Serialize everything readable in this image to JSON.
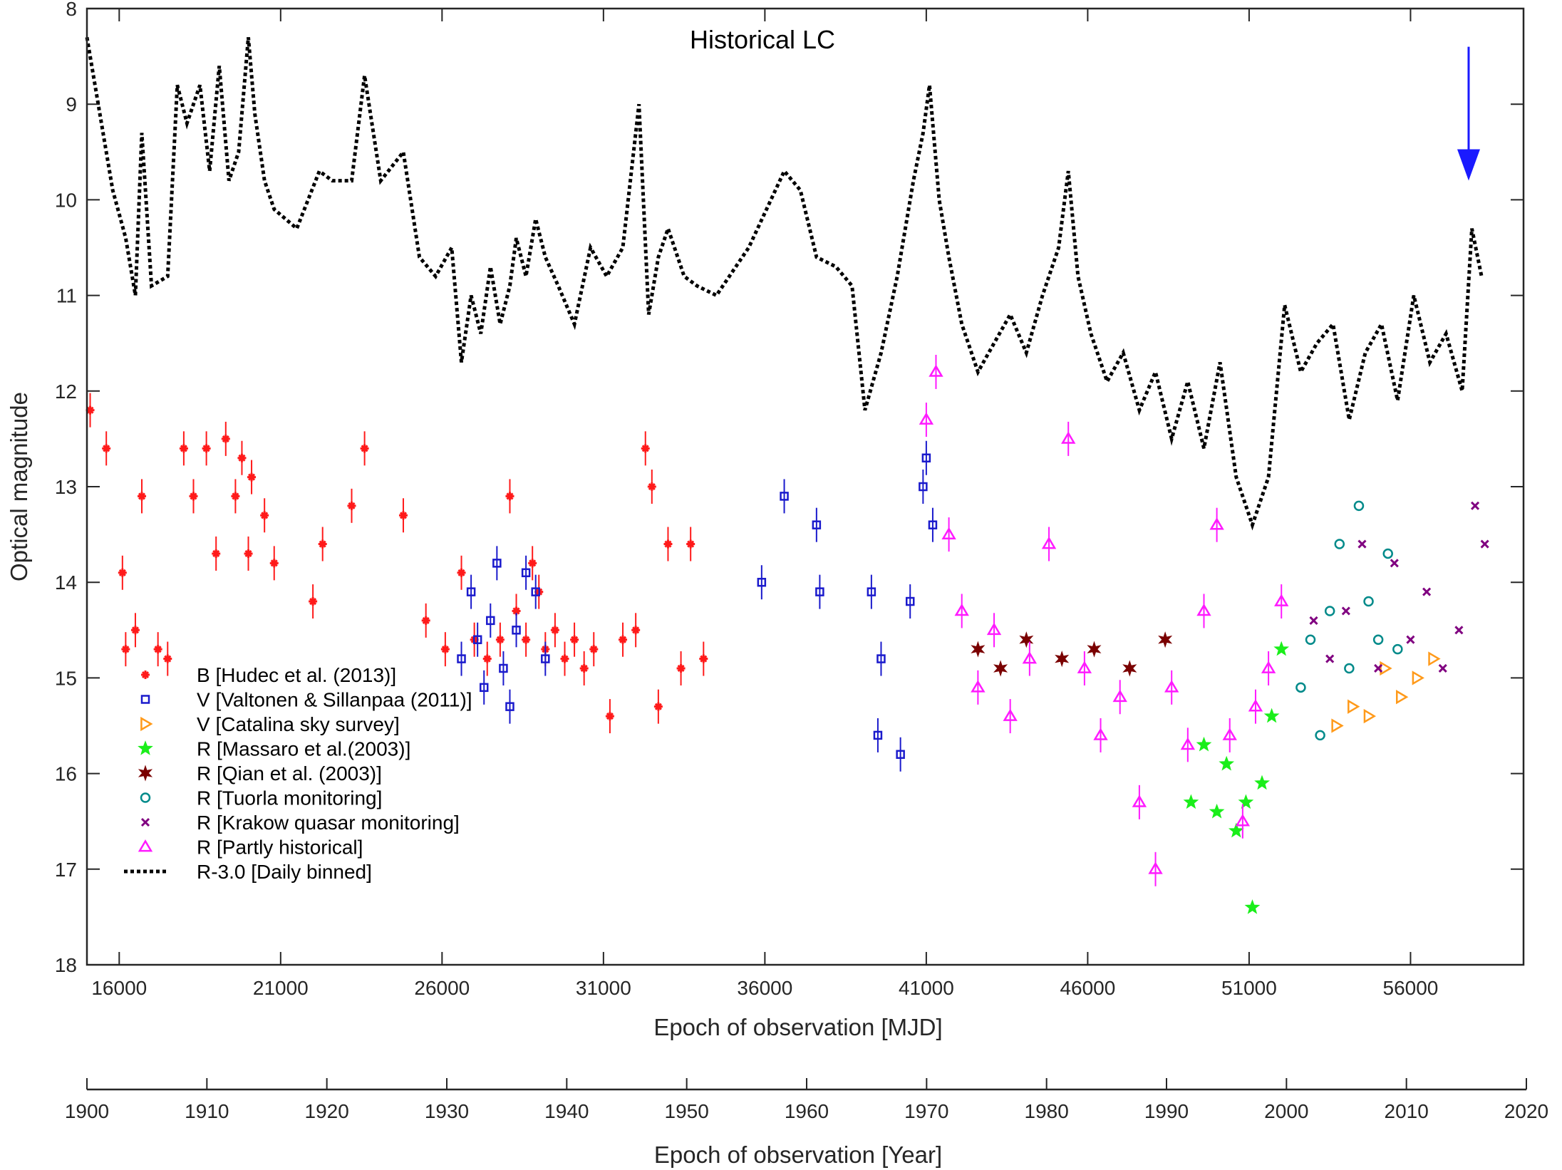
{
  "chart_data": {
    "type": "scatter",
    "title": "Historical LC",
    "xlabel": "Epoch of observation [MJD]",
    "ylabel": "Optical magnitude",
    "secondary_xlabel": "Epoch of observation [Year]",
    "xlim": [
      15000,
      59500
    ],
    "ylim": [
      8,
      18
    ],
    "y_inverted": true,
    "x_ticks": [
      16000,
      21000,
      26000,
      31000,
      36000,
      41000,
      46000,
      51000,
      56000
    ],
    "y_ticks": [
      8,
      9,
      10,
      11,
      12,
      13,
      14,
      15,
      16,
      17,
      18
    ],
    "year_ticks": [
      1900,
      1910,
      1920,
      1930,
      1940,
      1950,
      1960,
      1970,
      1980,
      1990,
      2000,
      2010,
      2020
    ],
    "year_range": [
      1900,
      2020
    ],
    "grid": false,
    "legend_position": "bottom-left",
    "annotation_arrow": {
      "x": 57800,
      "y_from": 8.4,
      "y_to": 9.8,
      "color": "#1a1aff"
    },
    "series": [
      {
        "name": "B [Hudec et al. (2013)]",
        "marker": "star-cross",
        "color": "#ff1a1a",
        "x": [
          15100,
          15600,
          16100,
          16200,
          16500,
          16700,
          17200,
          17500,
          18000,
          18300,
          18700,
          19000,
          19300,
          19600,
          19800,
          20000,
          20100,
          20500,
          20800,
          22000,
          22300,
          23200,
          23600,
          24800,
          25500,
          26100,
          26600,
          27000,
          27400,
          27800,
          28100,
          28300,
          28600,
          28800,
          29000,
          29200,
          29500,
          29800,
          30100,
          30400,
          30700,
          31200,
          31600,
          32000,
          32300,
          32500,
          32700,
          33000,
          33400,
          33700,
          34100
        ],
        "y": [
          12.2,
          12.6,
          13.9,
          14.7,
          14.5,
          13.1,
          14.7,
          14.8,
          12.6,
          13.1,
          12.6,
          13.7,
          12.5,
          13.1,
          12.7,
          13.7,
          12.9,
          13.3,
          13.8,
          14.2,
          13.6,
          13.2,
          12.6,
          13.3,
          14.4,
          14.7,
          13.9,
          14.6,
          14.8,
          14.6,
          13.1,
          14.3,
          14.6,
          13.8,
          14.1,
          14.7,
          14.5,
          14.8,
          14.6,
          14.9,
          14.7,
          15.4,
          14.6,
          14.5,
          12.6,
          13.0,
          15.3,
          13.6,
          14.9,
          13.6,
          14.8
        ]
      },
      {
        "name": "V [Valtonen & Sillanpaa (2011)]",
        "marker": "square",
        "color": "#1a1acc",
        "x": [
          26600,
          26900,
          27100,
          27300,
          27500,
          27700,
          27900,
          28100,
          28300,
          28600,
          28900,
          29200,
          35900,
          36600,
          37600,
          37700,
          39300,
          39500,
          39600,
          40200,
          40500,
          40900,
          41000,
          41200
        ],
        "y": [
          14.8,
          14.1,
          14.6,
          15.1,
          14.4,
          13.8,
          14.9,
          15.3,
          14.5,
          13.9,
          14.1,
          14.8,
          14.0,
          13.1,
          13.4,
          14.1,
          14.1,
          15.6,
          14.8,
          15.8,
          14.2,
          13.0,
          12.7,
          13.4
        ]
      },
      {
        "name": "V [Catalina sky survey]",
        "marker": "triangle-right",
        "color": "#ff9a1a",
        "x": [
          53700,
          54200,
          54700,
          55200,
          55700,
          56200,
          56700
        ],
        "y": [
          15.5,
          15.3,
          15.4,
          14.9,
          15.2,
          15.0,
          14.8
        ]
      },
      {
        "name": "R [Massaro et al.(2003)]",
        "marker": "star",
        "color": "#1aee1a",
        "x": [
          49200,
          49600,
          50000,
          50300,
          50600,
          50900,
          51100,
          51400,
          51700,
          52000
        ],
        "y": [
          16.3,
          15.7,
          16.4,
          15.9,
          16.6,
          16.3,
          17.4,
          16.1,
          15.4,
          14.7
        ]
      },
      {
        "name": "R [Qian et al. (2003)]",
        "marker": "hexagram",
        "color": "#7a0000",
        "x": [
          42600,
          43300,
          44100,
          45200,
          46200,
          47300,
          48400
        ],
        "y": [
          14.7,
          14.9,
          14.6,
          14.8,
          14.7,
          14.9,
          14.6
        ]
      },
      {
        "name": "R [Tuorla monitoring]",
        "marker": "circle",
        "color": "#008a8a",
        "x": [
          52600,
          52900,
          53200,
          53500,
          53800,
          54100,
          54400,
          54700,
          55000,
          55300,
          55600
        ],
        "y": [
          15.1,
          14.6,
          15.6,
          14.3,
          13.6,
          14.9,
          13.2,
          14.2,
          14.6,
          13.7,
          14.7
        ]
      },
      {
        "name": "R [Krakow quasar monitoring]",
        "marker": "x",
        "color": "#800080",
        "x": [
          53000,
          53500,
          54000,
          54500,
          55000,
          55500,
          56000,
          56500,
          57000,
          57500,
          58000,
          58300
        ],
        "y": [
          14.4,
          14.8,
          14.3,
          13.6,
          14.9,
          13.8,
          14.6,
          14.1,
          14.9,
          14.5,
          13.2,
          13.6
        ]
      },
      {
        "name": "R [Partly historical]",
        "marker": "triangle",
        "color": "#ff1aff",
        "x": [
          41000,
          41300,
          41700,
          42100,
          42600,
          43100,
          43600,
          44200,
          44800,
          45400,
          45900,
          46400,
          47000,
          47600,
          48100,
          48600,
          49100,
          49600,
          50000,
          50400,
          50800,
          51200,
          51600,
          52000
        ],
        "y": [
          12.3,
          11.8,
          13.5,
          14.3,
          15.1,
          14.5,
          15.4,
          14.8,
          13.6,
          12.5,
          14.9,
          15.6,
          15.2,
          16.3,
          17.0,
          15.1,
          15.7,
          14.3,
          13.4,
          15.6,
          16.5,
          15.3,
          14.9,
          14.2
        ]
      },
      {
        "name": "R-3.0 [Daily binned]",
        "marker": "dotted-line",
        "color": "#000000",
        "x": [
          15000,
          15400,
          15800,
          16200,
          16500,
          16700,
          17000,
          17500,
          17800,
          18100,
          18500,
          18800,
          19100,
          19400,
          19700,
          20000,
          20200,
          20500,
          20800,
          21500,
          22200,
          22600,
          23200,
          23600,
          24100,
          24800,
          25300,
          25800,
          26300,
          26600,
          26900,
          27200,
          27500,
          27800,
          28100,
          28300,
          28600,
          28900,
          29200,
          29600,
          30100,
          30600,
          31100,
          31600,
          32100,
          32400,
          32700,
          33000,
          33500,
          33900,
          34500,
          35500,
          36600,
          37100,
          37600,
          38200,
          38700,
          39100,
          39600,
          40100,
          40600,
          40900,
          41100,
          41400,
          41700,
          42100,
          42600,
          43100,
          43600,
          44100,
          44600,
          45100,
          45400,
          45700,
          46100,
          46600,
          47100,
          47600,
          48100,
          48600,
          49100,
          49600,
          50100,
          50600,
          51100,
          51600,
          52100,
          52600,
          53100,
          53600,
          54100,
          54600,
          55100,
          55600,
          56100,
          56600,
          57100,
          57600,
          57900,
          58200
        ],
        "y": [
          8.3,
          9.1,
          9.9,
          10.4,
          11.0,
          9.3,
          10.9,
          10.8,
          8.8,
          9.2,
          8.8,
          9.7,
          8.6,
          9.8,
          9.5,
          8.3,
          9.1,
          9.8,
          10.1,
          10.3,
          9.7,
          9.8,
          9.8,
          8.7,
          9.8,
          9.5,
          10.6,
          10.8,
          10.5,
          11.7,
          11.0,
          11.4,
          10.7,
          11.3,
          10.9,
          10.4,
          10.8,
          10.2,
          10.6,
          10.9,
          11.3,
          10.5,
          10.8,
          10.5,
          9.0,
          11.2,
          10.6,
          10.3,
          10.8,
          10.9,
          11.0,
          10.5,
          9.7,
          9.9,
          10.6,
          10.7,
          10.9,
          12.2,
          11.6,
          10.8,
          9.8,
          9.3,
          8.8,
          10.0,
          10.6,
          11.3,
          11.8,
          11.5,
          11.2,
          11.6,
          11.0,
          10.5,
          9.7,
          10.8,
          11.4,
          11.9,
          11.6,
          12.2,
          11.8,
          12.5,
          11.9,
          12.6,
          11.7,
          12.9,
          13.4,
          12.9,
          11.1,
          11.8,
          11.5,
          11.3,
          12.3,
          11.6,
          11.3,
          12.1,
          11.0,
          11.7,
          11.4,
          12.0,
          10.3,
          10.8
        ]
      }
    ]
  }
}
